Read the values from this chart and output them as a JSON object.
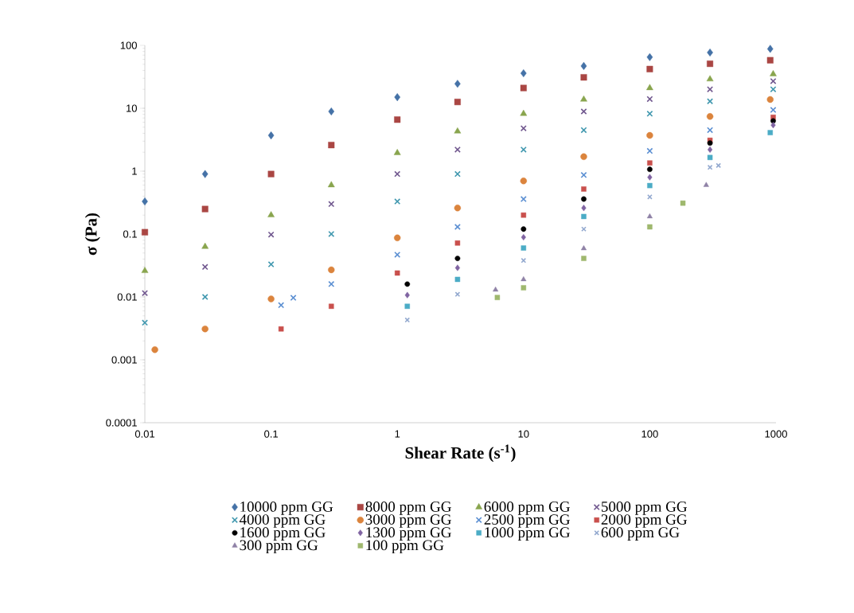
{
  "chart_data": {
    "type": "scatter",
    "xlabel": "Shear Rate (s$^{-1}$)",
    "ylabel": "σ (Pa)",
    "log": "xy",
    "legend": "bottom",
    "grid": false,
    "xlim": [
      0.01,
      1000
    ],
    "ylim": [
      0.0001,
      100
    ],
    "xticks": [
      0.01,
      0.1,
      1,
      10,
      100,
      1000
    ],
    "yticks": [
      0.0001,
      0.001,
      0.01,
      0.1,
      1,
      10,
      100
    ],
    "series": [
      {
        "name": "10000 ppm GG",
        "color": "#4572a7",
        "marker": "diamond",
        "x": [
          0.01,
          0.03,
          0.1,
          0.3,
          1,
          3,
          10,
          30,
          100,
          300,
          900
        ],
        "values": [
          0.33,
          0.9,
          3.7,
          8.9,
          15,
          24.5,
          36,
          47,
          65,
          77,
          88
        ]
      },
      {
        "name": "8000 ppm GG",
        "color": "#aa4643",
        "marker": "square",
        "x": [
          0.01,
          0.03,
          0.1,
          0.3,
          1,
          3,
          10,
          30,
          100,
          300,
          900
        ],
        "values": [
          0.107,
          0.25,
          0.9,
          2.6,
          6.6,
          12.6,
          21,
          31,
          42,
          51,
          58
        ]
      },
      {
        "name": "6000 ppm GG",
        "color": "#89a54e",
        "marker": "triangle",
        "x": [
          0.01,
          0.03,
          0.1,
          0.3,
          1,
          3,
          10,
          30,
          100,
          300,
          950
        ],
        "values": [
          0.026,
          0.063,
          0.2,
          0.6,
          1.95,
          4.3,
          8.2,
          13.8,
          21,
          29,
          35
        ]
      },
      {
        "name": "5000 ppm GG",
        "color": "#71588f",
        "marker": "cross",
        "x": [
          0.01,
          0.03,
          0.1,
          0.3,
          1,
          3,
          10,
          30,
          100,
          300,
          950
        ],
        "values": [
          0.0115,
          0.03,
          0.098,
          0.3,
          0.9,
          2.2,
          4.8,
          8.9,
          14,
          20,
          27
        ]
      },
      {
        "name": "4000 ppm GG",
        "color": "#4198af",
        "marker": "cross",
        "x": [
          0.01,
          0.03,
          0.1,
          0.3,
          1,
          3,
          10,
          30,
          100,
          300,
          950
        ],
        "values": [
          0.0039,
          0.01,
          0.033,
          0.1,
          0.33,
          0.9,
          2.2,
          4.5,
          8.2,
          12.9,
          20
        ]
      },
      {
        "name": "3000 ppm GG",
        "color": "#db843d",
        "marker": "circle",
        "x": [
          0.012,
          0.03,
          0.1,
          0.3,
          1,
          3,
          10,
          30,
          100,
          300,
          900
        ],
        "values": [
          0.00145,
          0.0031,
          0.0093,
          0.027,
          0.087,
          0.26,
          0.7,
          1.7,
          3.7,
          7.4,
          13.8
        ]
      },
      {
        "name": "2500 ppm GG",
        "color": "#5b8fd2",
        "marker": "cross",
        "x": [
          0.12,
          0.15,
          0.3,
          1,
          3,
          10,
          30,
          100,
          300,
          950
        ],
        "values": [
          0.0074,
          0.0097,
          0.016,
          0.047,
          0.13,
          0.36,
          0.87,
          2.1,
          4.5,
          9.4
        ]
      },
      {
        "name": "2000 ppm GG",
        "color": "#c9504d",
        "marker": "square",
        "x": [
          0.12,
          0.3,
          1,
          3,
          10,
          30,
          100,
          300,
          950
        ],
        "values": [
          0.0031,
          0.0071,
          0.024,
          0.072,
          0.2,
          0.52,
          1.35,
          3.1,
          7.2
        ]
      },
      {
        "name": "1600 ppm GG",
        "color": "#000000",
        "marker": "circle",
        "x": [
          1.2,
          3,
          10,
          30,
          100,
          300,
          950
        ],
        "values": [
          0.016,
          0.041,
          0.12,
          0.36,
          1.07,
          2.8,
          6.3
        ]
      },
      {
        "name": "1300 ppm GG",
        "color": "#8064a2",
        "marker": "diamond",
        "x": [
          1.2,
          3,
          10,
          30,
          100,
          300,
          950
        ],
        "values": [
          0.0107,
          0.029,
          0.089,
          0.26,
          0.8,
          2.2,
          5.4
        ]
      },
      {
        "name": "1000 ppm GG",
        "color": "#4bacc6",
        "marker": "square",
        "x": [
          1.2,
          3,
          10,
          30,
          100,
          300,
          900
        ],
        "values": [
          0.0071,
          0.019,
          0.06,
          0.19,
          0.59,
          1.65,
          4.1
        ]
      },
      {
        "name": "600 ppm GG",
        "color": "#93a9cf",
        "marker": "cross",
        "x": [
          1.2,
          3,
          10,
          30,
          100,
          300,
          350
        ],
        "values": [
          0.0043,
          0.011,
          0.038,
          0.12,
          0.39,
          1.15,
          1.23
        ]
      },
      {
        "name": "300 ppm GG",
        "color": "#8f82a6",
        "marker": "triangle",
        "x": [
          6,
          10,
          30,
          100,
          280
        ],
        "values": [
          0.013,
          0.019,
          0.059,
          0.19,
          0.6
        ]
      },
      {
        "name": "100 ppm GG",
        "color": "#9fb86e",
        "marker": "square",
        "x": [
          6.2,
          10,
          30,
          100,
          183
        ],
        "values": [
          0.0098,
          0.014,
          0.041,
          0.13,
          0.31
        ]
      }
    ]
  }
}
